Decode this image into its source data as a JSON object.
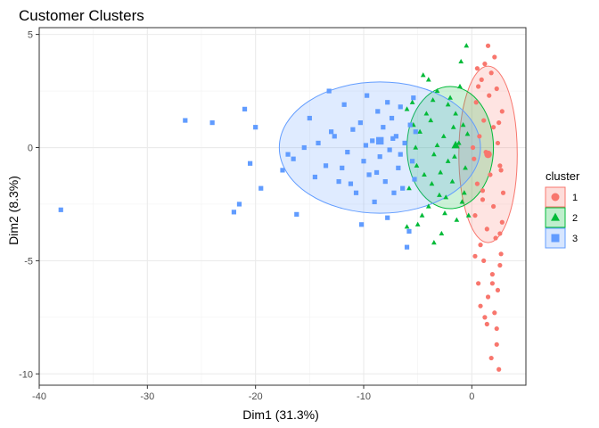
{
  "chart_data": {
    "type": "scatter",
    "title": "Customer Clusters",
    "xlabel": "Dim1 (31.3%)",
    "ylabel": "Dim2 (8.3%)",
    "xlim": [
      -40,
      5
    ],
    "ylim": [
      -10.5,
      5.3
    ],
    "x_ticks": [
      -40,
      -30,
      -20,
      -10,
      0
    ],
    "y_ticks": [
      -10,
      -5,
      0,
      5
    ],
    "x_tick_labels": [
      "-40",
      "-30",
      "-20",
      "-10",
      "0"
    ],
    "y_tick_labels": [
      "-10",
      "-5",
      "0",
      "5"
    ],
    "grid": true,
    "legend": {
      "title": "cluster",
      "position": "right"
    },
    "series": [
      {
        "name": "1",
        "marker": "circle",
        "color": "#F8766D",
        "centroid": [
          1.5,
          -0.3
        ],
        "ellipse": {
          "cx": 1.5,
          "cy": -0.3,
          "rx": 2.7,
          "ry": 3.9
        },
        "points": [
          [
            2.5,
            -9.8
          ],
          [
            1.8,
            -9.3
          ],
          [
            2.3,
            -8.0
          ],
          [
            1.2,
            -7.5
          ],
          [
            2.1,
            -7.3
          ],
          [
            0.8,
            -7.0
          ],
          [
            1.5,
            -6.6
          ],
          [
            2.4,
            -6.3
          ],
          [
            0.6,
            -6.0
          ],
          [
            1.9,
            -5.6
          ],
          [
            2.6,
            -5.2
          ],
          [
            1.1,
            -5.0
          ],
          [
            2.7,
            -4.7
          ],
          [
            0.8,
            -4.3
          ],
          [
            2.2,
            -4.0
          ],
          [
            1.4,
            -3.6
          ],
          [
            2.8,
            -3.3
          ],
          [
            0.3,
            -3.0
          ],
          [
            2.0,
            -2.6
          ],
          [
            1.0,
            -2.3
          ],
          [
            2.9,
            -2.0
          ],
          [
            0.5,
            -1.6
          ],
          [
            1.7,
            -1.2
          ],
          [
            2.6,
            -0.8
          ],
          [
            0.2,
            -0.5
          ],
          [
            1.3,
            -0.2
          ],
          [
            2.4,
            0.2
          ],
          [
            0.7,
            0.5
          ],
          [
            2.0,
            0.9
          ],
          [
            1.1,
            1.2
          ],
          [
            2.8,
            1.6
          ],
          [
            0.4,
            2.0
          ],
          [
            1.6,
            2.3
          ],
          [
            2.3,
            2.6
          ],
          [
            0.9,
            3.0
          ],
          [
            1.8,
            3.3
          ],
          [
            1.2,
            3.7
          ],
          [
            2.1,
            4.0
          ],
          [
            1.5,
            4.5
          ],
          [
            0.6,
            2.7
          ],
          [
            2.7,
            -1.0
          ],
          [
            0.3,
            -4.8
          ],
          [
            1.9,
            -6.0
          ],
          [
            2.3,
            -8.7
          ],
          [
            1.0,
            -1.9
          ],
          [
            2.5,
            1.1
          ],
          [
            0.5,
            3.5
          ],
          [
            1.4,
            -7.8
          ],
          [
            2.6,
            -3.8
          ],
          [
            0.1,
            0.0
          ]
        ]
      },
      {
        "name": "2",
        "marker": "triangle",
        "color": "#00BA38",
        "centroid": [
          -1.5,
          0.1
        ],
        "ellipse": {
          "cx": -2.0,
          "cy": 0.0,
          "rx": 4.0,
          "ry": 2.7
        },
        "points": [
          [
            -0.5,
            4.5
          ],
          [
            -1.0,
            3.8
          ],
          [
            -4.0,
            3.0
          ],
          [
            -3.2,
            2.5
          ],
          [
            -2.0,
            2.2
          ],
          [
            -5.5,
            2.0
          ],
          [
            -6.0,
            1.7
          ],
          [
            -1.5,
            1.5
          ],
          [
            -3.8,
            1.2
          ],
          [
            -0.8,
            1.0
          ],
          [
            -4.8,
            0.7
          ],
          [
            -2.6,
            0.5
          ],
          [
            -1.2,
            0.2
          ],
          [
            -5.2,
            0.0
          ],
          [
            -3.5,
            -0.3
          ],
          [
            -2.2,
            -0.6
          ],
          [
            -0.6,
            -0.9
          ],
          [
            -4.4,
            -1.2
          ],
          [
            -1.8,
            -1.5
          ],
          [
            -5.8,
            -1.8
          ],
          [
            -3.0,
            -2.1
          ],
          [
            -0.9,
            -2.4
          ],
          [
            -4.0,
            -2.6
          ],
          [
            -2.5,
            -2.9
          ],
          [
            -6.0,
            -3.5
          ],
          [
            -5.0,
            -3.4
          ],
          [
            -3.5,
            -4.2
          ],
          [
            -2.8,
            -3.8
          ],
          [
            -1.4,
            -3.2
          ],
          [
            -4.6,
            -3.0
          ],
          [
            -2.2,
            1.9
          ],
          [
            -3.2,
            0.1
          ],
          [
            -1.6,
            -0.4
          ],
          [
            -4.2,
            1.5
          ],
          [
            -0.4,
            0.6
          ],
          [
            -2.9,
            -1.1
          ],
          [
            -5.4,
            1.0
          ],
          [
            -1.1,
            2.7
          ],
          [
            -3.7,
            -1.6
          ],
          [
            -0.7,
            -2.0
          ],
          [
            -4.5,
            3.2
          ],
          [
            -3.6,
            2.1
          ],
          [
            -1.7,
            0.9
          ],
          [
            -5.1,
            -0.8
          ],
          [
            -2.4,
            -2.2
          ],
          [
            -0.3,
            -3.0
          ]
        ]
      },
      {
        "name": "3",
        "marker": "square",
        "color": "#619CFF",
        "centroid": [
          -8.5,
          0.3
        ],
        "ellipse": {
          "cx": -8.5,
          "cy": 0.0,
          "rx": 9.3,
          "ry": 2.9
        },
        "points": [
          [
            -38,
            -2.75
          ],
          [
            -26.5,
            1.2
          ],
          [
            -24,
            1.1
          ],
          [
            -22,
            -2.85
          ],
          [
            -21.5,
            -2.5
          ],
          [
            -21,
            1.7
          ],
          [
            -20.5,
            -0.7
          ],
          [
            -20,
            0.9
          ],
          [
            -19.5,
            -1.8
          ],
          [
            -17.5,
            -1.0
          ],
          [
            -17,
            -0.3
          ],
          [
            -16.5,
            -0.5
          ],
          [
            -16.2,
            -2.95
          ],
          [
            -15.5,
            0.0
          ],
          [
            -15.0,
            1.3
          ],
          [
            -14.5,
            -1.3
          ],
          [
            -13.5,
            -0.8
          ],
          [
            -13.2,
            2.5
          ],
          [
            -12.7,
            0.5
          ],
          [
            -12.3,
            -1.5
          ],
          [
            -11.8,
            1.9
          ],
          [
            -11.5,
            -0.2
          ],
          [
            -11.0,
            0.8
          ],
          [
            -10.7,
            -2.0
          ],
          [
            -10.3,
            1.1
          ],
          [
            -10.0,
            -0.6
          ],
          [
            -9.7,
            2.3
          ],
          [
            -9.5,
            -1.2
          ],
          [
            -9.2,
            0.3
          ],
          [
            -9.0,
            -2.4
          ],
          [
            -8.7,
            1.6
          ],
          [
            -8.5,
            -0.4
          ],
          [
            -8.2,
            0.9
          ],
          [
            -8.0,
            -1.5
          ],
          [
            -7.8,
            2.0
          ],
          [
            -7.6,
            -0.1
          ],
          [
            -7.4,
            1.3
          ],
          [
            -7.2,
            -2.0
          ],
          [
            -7.0,
            0.5
          ],
          [
            -6.8,
            -0.9
          ],
          [
            -6.6,
            1.8
          ],
          [
            -6.4,
            -1.8
          ],
          [
            -6.2,
            0.2
          ],
          [
            -6.0,
            -4.4
          ],
          [
            -5.8,
            -3.7
          ],
          [
            -5.7,
            1.0
          ],
          [
            -5.5,
            -0.6
          ],
          [
            -5.4,
            2.2
          ],
          [
            -5.3,
            -1.4
          ],
          [
            -5.2,
            0.7
          ],
          [
            -10.2,
            -3.4
          ],
          [
            -7.8,
            -3.1
          ],
          [
            -13.0,
            0.7
          ],
          [
            -11.2,
            -1.6
          ],
          [
            -14.2,
            0.2
          ],
          [
            -12.0,
            -0.9
          ],
          [
            -9.8,
            0.1
          ],
          [
            -8.8,
            -1.1
          ],
          [
            -7.3,
            0.4
          ],
          [
            -6.6,
            -0.3
          ]
        ]
      }
    ]
  }
}
